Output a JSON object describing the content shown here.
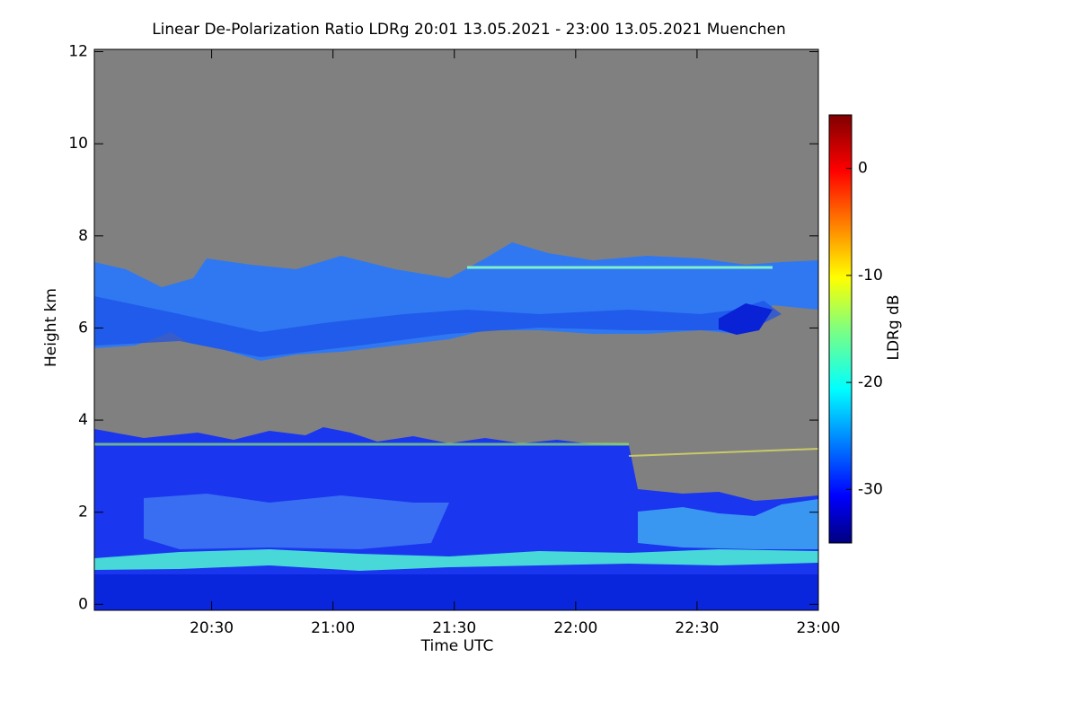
{
  "chart_data": {
    "type": "heatmap",
    "title": "Linear De-Polarization Ratio LDRg   20:01 13.05.2021 - 23:00 13.05.2021 Muenchen",
    "x_label": "Time UTC",
    "y_label": "Height km",
    "xlim": [
      "2021-05-13T20:01",
      "2021-05-13T23:00"
    ],
    "xticks": [
      {
        "value": "2021-05-13T20:30",
        "label": "20:30"
      },
      {
        "value": "2021-05-13T21:00",
        "label": "21:00"
      },
      {
        "value": "2021-05-13T21:30",
        "label": "21:30"
      },
      {
        "value": "2021-05-13T22:00",
        "label": "22:00"
      },
      {
        "value": "2021-05-13T22:30",
        "label": "22:30"
      },
      {
        "value": "2021-05-13T23:00",
        "label": "23:00"
      }
    ],
    "ylim": [
      -0.13,
      12.05
    ],
    "yticks": [
      0,
      2,
      4,
      6,
      8,
      10,
      12
    ],
    "colorbar": {
      "label": "LDRg dB",
      "colormap": "jet",
      "clim": [
        -35,
        5
      ],
      "ticks": [
        0,
        -10,
        -20,
        -30
      ]
    }
  }
}
